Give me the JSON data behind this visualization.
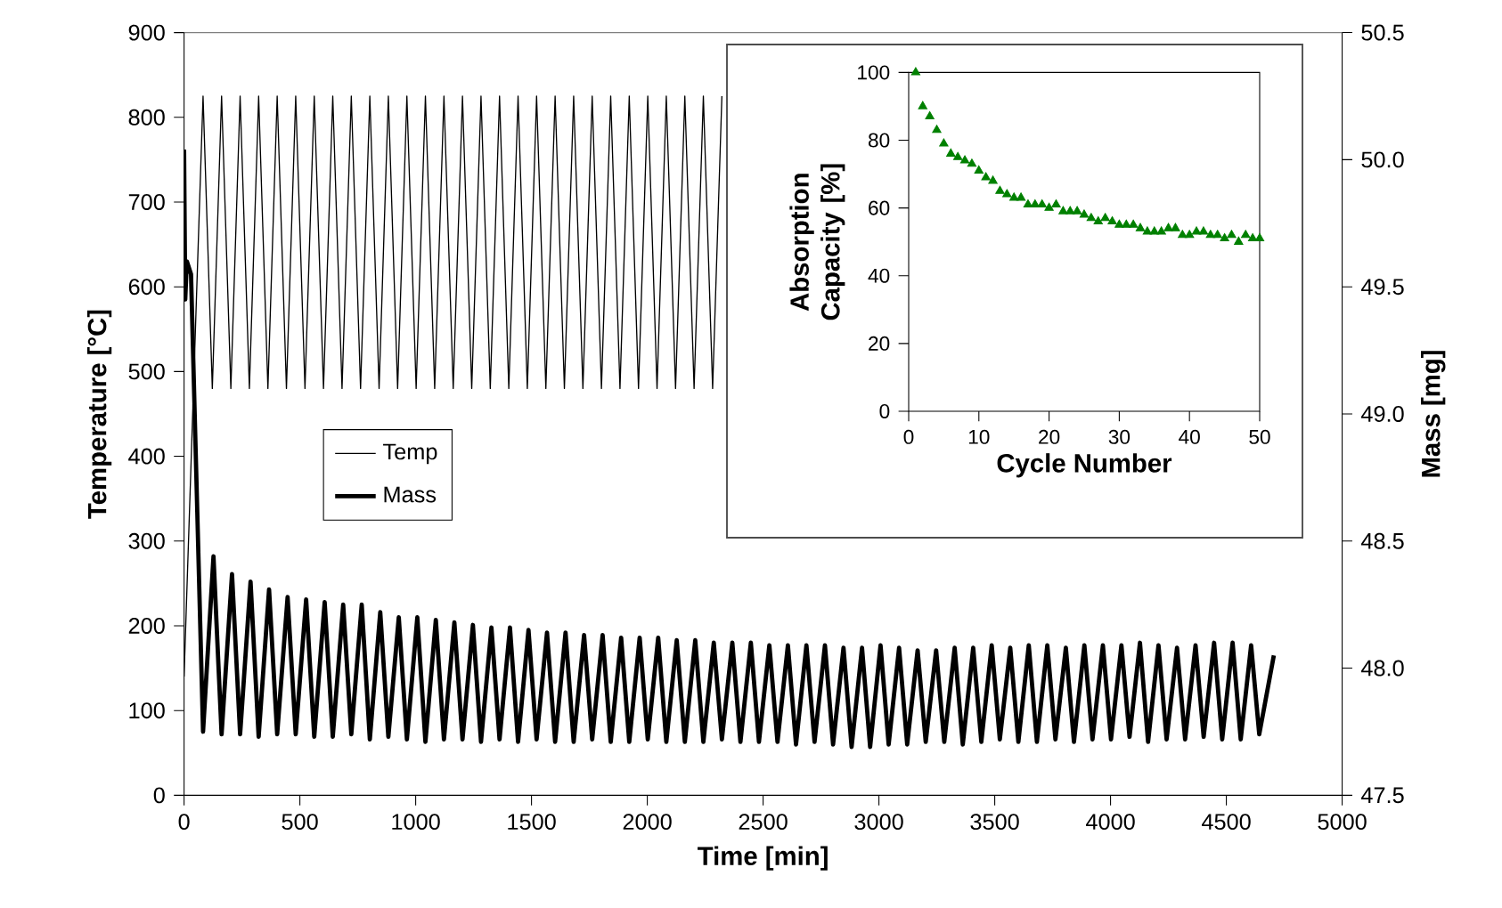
{
  "chart_data": [
    {
      "type": "line",
      "xlabel": "Time [min]",
      "ylabel": "Temperature [°C]",
      "y2label": "Mass [mg]",
      "xlim": [
        0,
        5000
      ],
      "xticks": [
        0,
        500,
        1000,
        1500,
        2000,
        2500,
        3000,
        3500,
        4000,
        4500,
        5000
      ],
      "ylim": [
        0,
        900
      ],
      "yticks": [
        0,
        100,
        200,
        300,
        400,
        500,
        600,
        700,
        800,
        900
      ],
      "y2lim": [
        47.5,
        50.5
      ],
      "y2ticks": [
        47.5,
        {
          "value": 48,
          "label": "48.0"
        },
        48.5,
        {
          "value": 49,
          "label": "49.0"
        },
        49.5,
        {
          "value": 50,
          "label": "50.0"
        },
        50.5
      ],
      "legend": "left",
      "marker": "none",
      "line_style": "solid",
      "series": [
        {
          "name": "Temp",
          "color": "#000000",
          "x": [
            0,
            82,
            122,
            162,
            202,
            242,
            282,
            322,
            362,
            402,
            442,
            482,
            522,
            562,
            602,
            642,
            682,
            722,
            762,
            802,
            842,
            882,
            922,
            962,
            1002,
            1042,
            1082,
            1122,
            1162,
            1202,
            1242,
            1282,
            1322,
            1362,
            1402,
            1442,
            1482,
            1522,
            1562,
            1602,
            1642,
            1682,
            1722,
            1762,
            1802,
            1842,
            1882,
            1922,
            1962,
            2002,
            2042,
            2082,
            2122,
            2162,
            2202,
            2242,
            2282,
            2322
          ],
          "values": [
            140,
            825,
            480,
            825,
            480,
            825,
            480,
            825,
            480,
            825,
            480,
            825,
            480,
            825,
            480,
            825,
            480,
            825,
            480,
            825,
            480,
            825,
            480,
            825,
            480,
            825,
            480,
            825,
            480,
            825,
            480,
            825,
            480,
            825,
            480,
            825,
            480,
            825,
            480,
            825,
            480,
            825,
            480,
            825,
            480,
            825,
            480,
            825,
            480,
            825,
            480,
            825,
            480,
            825,
            480,
            825,
            480,
            825
          ]
        },
        {
          "name": "Mass",
          "color": "#000000",
          "axis": "y2",
          "x": [
            0,
            5,
            12,
            30,
            82,
            127,
            162,
            207,
            242,
            287,
            322,
            367,
            402,
            447,
            482,
            527,
            562,
            607,
            642,
            687,
            722,
            767,
            802,
            847,
            882,
            927,
            962,
            1007,
            1042,
            1087,
            1122,
            1167,
            1202,
            1247,
            1282,
            1327,
            1362,
            1407,
            1442,
            1487,
            1522,
            1567,
            1602,
            1647,
            1682,
            1727,
            1762,
            1807,
            1842,
            1887,
            1922,
            1967,
            2002,
            2047,
            2082,
            2127,
            2162,
            2207,
            2242,
            2287,
            2322,
            2367,
            2402,
            2447,
            2482,
            2527,
            2562,
            2607,
            2642,
            2687,
            2722,
            2767,
            2802,
            2847,
            2882,
            2927,
            2962,
            3007,
            3042,
            3087,
            3122,
            3167,
            3202,
            3247,
            3282,
            3327,
            3362,
            3407,
            3442,
            3487,
            3522,
            3567,
            3602,
            3647,
            3682,
            3727,
            3762,
            3807,
            3842,
            3887,
            3922,
            3967,
            4002,
            4047,
            4082,
            4127,
            4162,
            4207,
            4242,
            4287,
            4322,
            4367,
            4402,
            4447,
            4482,
            4527,
            4562,
            4607,
            4642,
            4705
          ],
          "values": [
            50.04,
            49.45,
            49.6,
            49.55,
            47.75,
            48.44,
            47.74,
            48.37,
            47.74,
            48.34,
            47.73,
            48.31,
            47.74,
            48.28,
            47.74,
            48.27,
            47.73,
            48.26,
            47.73,
            48.25,
            47.74,
            48.25,
            47.72,
            48.22,
            47.73,
            48.2,
            47.72,
            48.2,
            47.71,
            48.19,
            47.72,
            48.18,
            47.72,
            48.17,
            47.71,
            48.16,
            47.72,
            48.16,
            47.71,
            48.15,
            47.72,
            48.14,
            47.71,
            48.14,
            47.71,
            48.13,
            47.72,
            48.13,
            47.71,
            48.12,
            47.71,
            48.12,
            47.72,
            48.12,
            47.71,
            48.11,
            47.71,
            48.11,
            47.71,
            48.1,
            47.72,
            48.1,
            47.71,
            48.1,
            47.71,
            48.09,
            47.71,
            48.09,
            47.7,
            48.09,
            47.71,
            48.09,
            47.7,
            48.08,
            47.69,
            48.08,
            47.69,
            48.09,
            47.7,
            48.08,
            47.7,
            48.07,
            47.71,
            48.07,
            47.71,
            48.08,
            47.7,
            48.08,
            47.71,
            48.09,
            47.72,
            48.08,
            47.71,
            48.09,
            47.71,
            48.09,
            47.72,
            48.08,
            47.71,
            48.09,
            47.72,
            48.09,
            47.72,
            48.09,
            47.73,
            48.1,
            47.71,
            48.09,
            47.72,
            48.08,
            47.72,
            48.09,
            47.73,
            48.1,
            47.72,
            48.1,
            47.72,
            48.09,
            47.74,
            48.05
          ]
        }
      ]
    },
    {
      "type": "scatter",
      "xlabel": "Cycle Number",
      "ylabel": "Absorption Capacity [%]",
      "xlim": [
        0,
        50
      ],
      "xticks": [
        0,
        10,
        20,
        30,
        40,
        50
      ],
      "ylim": [
        0,
        100
      ],
      "yticks": [
        0,
        20,
        40,
        60,
        80,
        100
      ],
      "marker": "triangle",
      "color": "#008000",
      "x": [
        1,
        2,
        3,
        4,
        5,
        6,
        7,
        8,
        9,
        10,
        11,
        12,
        13,
        14,
        15,
        16,
        17,
        18,
        19,
        20,
        21,
        22,
        23,
        24,
        25,
        26,
        27,
        28,
        29,
        30,
        31,
        32,
        33,
        34,
        35,
        36,
        37,
        38,
        39,
        40,
        41,
        42,
        43,
        44,
        45,
        46,
        47,
        48,
        49,
        50
      ],
      "values": [
        100,
        90,
        87,
        83,
        79,
        76,
        75,
        74,
        73,
        71,
        69,
        68,
        65,
        64,
        63,
        63,
        61,
        61,
        61,
        60,
        61,
        59,
        59,
        59,
        58,
        57,
        56,
        57,
        56,
        55,
        55,
        55,
        54,
        53,
        53,
        53,
        54,
        54,
        52,
        52,
        53,
        53,
        52,
        52,
        51,
        52,
        50,
        52,
        51,
        51
      ]
    }
  ]
}
